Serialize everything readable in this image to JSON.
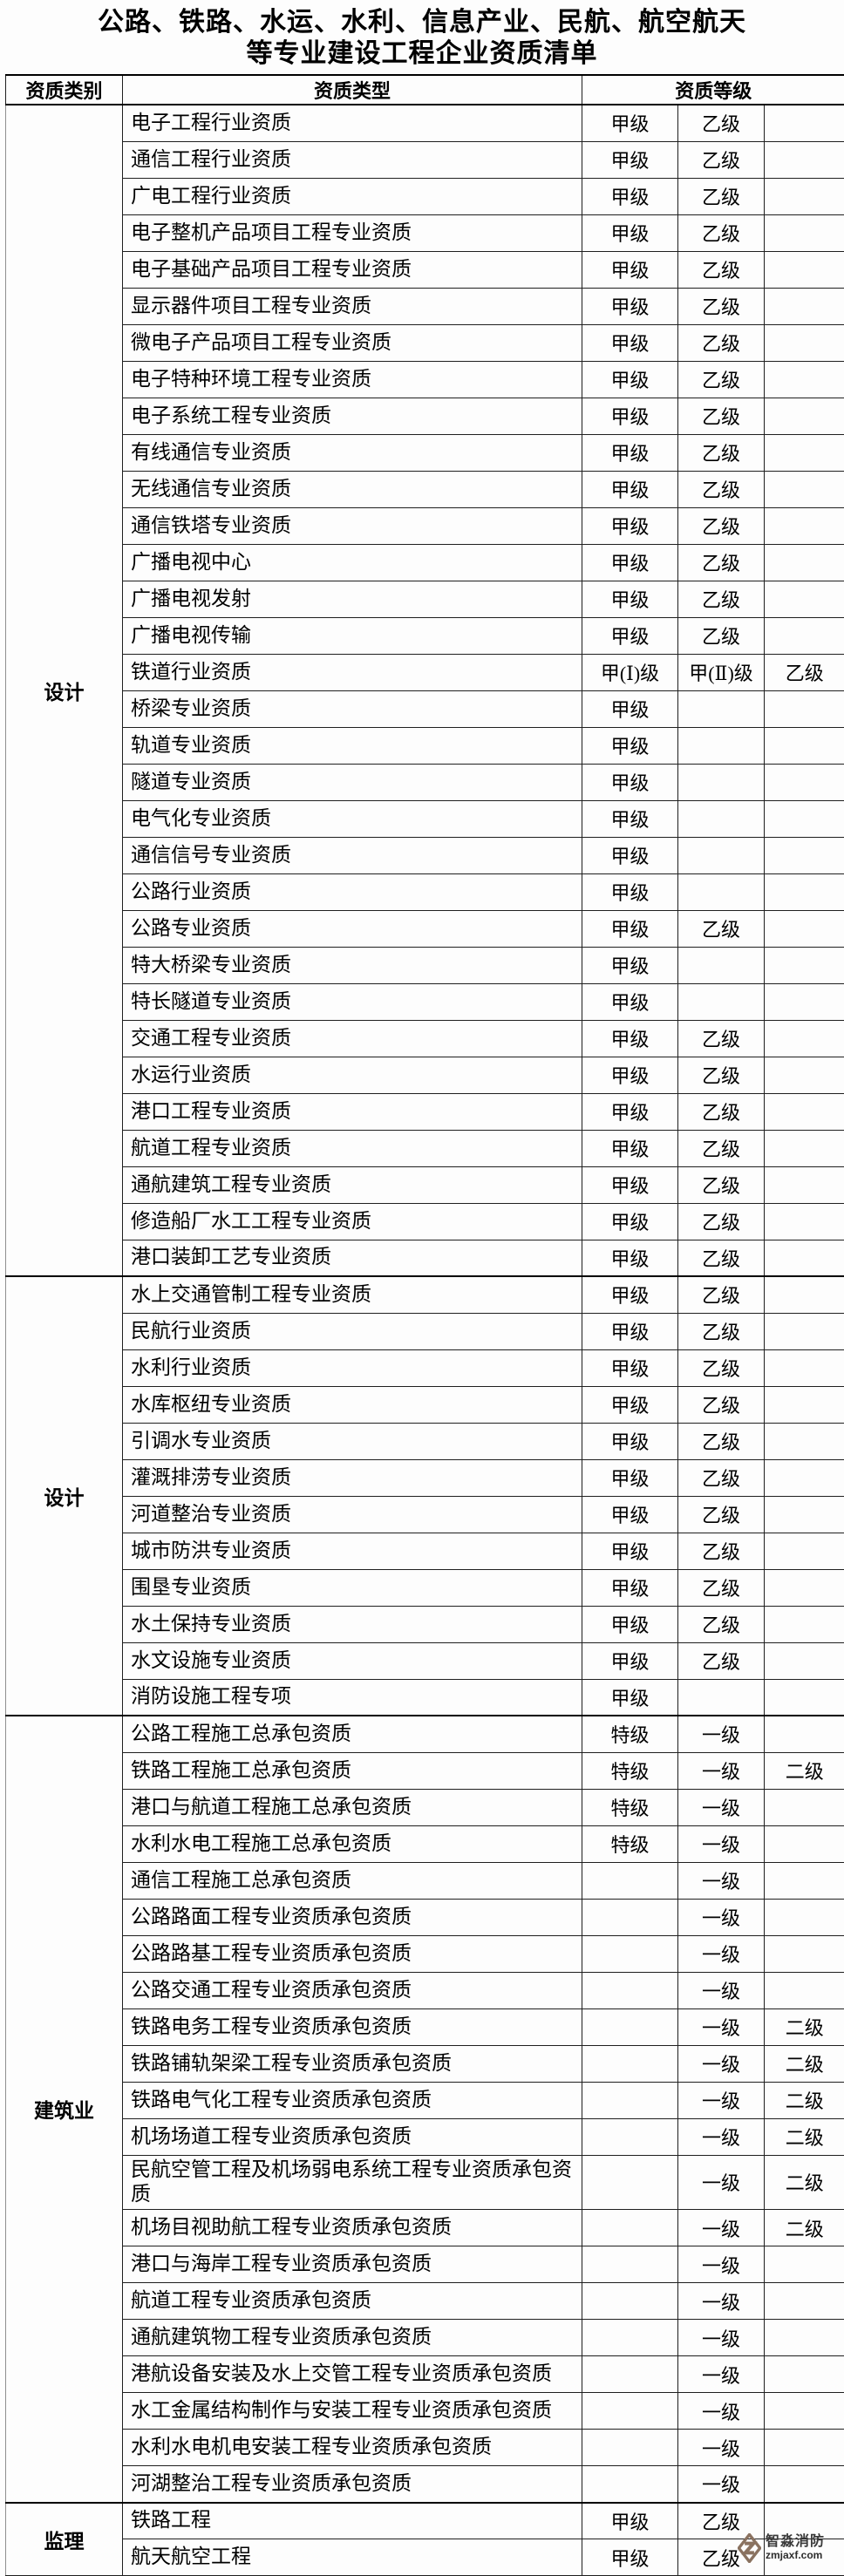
{
  "title": {
    "line1": "公路、铁路、水运、水利、信息产业、民航、航空航天",
    "line2": "等专业建设工程企业资质清单"
  },
  "table": {
    "headers": {
      "category": "资质类别",
      "type": "资质类型",
      "grade": "资质等级"
    },
    "sections": [
      {
        "category": "设计",
        "rows": [
          {
            "type": "电子工程行业资质",
            "g1": "甲级",
            "g2": "乙级",
            "g3": ""
          },
          {
            "type": "通信工程行业资质",
            "g1": "甲级",
            "g2": "乙级",
            "g3": ""
          },
          {
            "type": "广电工程行业资质",
            "g1": "甲级",
            "g2": "乙级",
            "g3": ""
          },
          {
            "type": "电子整机产品项目工程专业资质",
            "g1": "甲级",
            "g2": "乙级",
            "g3": ""
          },
          {
            "type": "电子基础产品项目工程专业资质",
            "g1": "甲级",
            "g2": "乙级",
            "g3": ""
          },
          {
            "type": "显示器件项目工程专业资质",
            "g1": "甲级",
            "g2": "乙级",
            "g3": ""
          },
          {
            "type": "微电子产品项目工程专业资质",
            "g1": "甲级",
            "g2": "乙级",
            "g3": ""
          },
          {
            "type": "电子特种环境工程专业资质",
            "g1": "甲级",
            "g2": "乙级",
            "g3": ""
          },
          {
            "type": "电子系统工程专业资质",
            "g1": "甲级",
            "g2": "乙级",
            "g3": ""
          },
          {
            "type": "有线通信专业资质",
            "g1": "甲级",
            "g2": "乙级",
            "g3": ""
          },
          {
            "type": "无线通信专业资质",
            "g1": "甲级",
            "g2": "乙级",
            "g3": ""
          },
          {
            "type": "通信铁塔专业资质",
            "g1": "甲级",
            "g2": "乙级",
            "g3": ""
          },
          {
            "type": "广播电视中心",
            "g1": "甲级",
            "g2": "乙级",
            "g3": ""
          },
          {
            "type": "广播电视发射",
            "g1": "甲级",
            "g2": "乙级",
            "g3": ""
          },
          {
            "type": "广播电视传输",
            "g1": "甲级",
            "g2": "乙级",
            "g3": ""
          },
          {
            "type": "铁道行业资质",
            "g1": "甲(Ⅰ)级",
            "g2": "甲(Ⅱ)级",
            "g3": "乙级"
          },
          {
            "type": "桥梁专业资质",
            "g1": "甲级",
            "g2": "",
            "g3": ""
          },
          {
            "type": "轨道专业资质",
            "g1": "甲级",
            "g2": "",
            "g3": ""
          },
          {
            "type": "隧道专业资质",
            "g1": "甲级",
            "g2": "",
            "g3": ""
          },
          {
            "type": "电气化专业资质",
            "g1": "甲级",
            "g2": "",
            "g3": ""
          },
          {
            "type": "通信信号专业资质",
            "g1": "甲级",
            "g2": "",
            "g3": ""
          },
          {
            "type": "公路行业资质",
            "g1": "甲级",
            "g2": "",
            "g3": ""
          },
          {
            "type": "公路专业资质",
            "g1": "甲级",
            "g2": "乙级",
            "g3": ""
          },
          {
            "type": "特大桥梁专业资质",
            "g1": "甲级",
            "g2": "",
            "g3": ""
          },
          {
            "type": "特长隧道专业资质",
            "g1": "甲级",
            "g2": "",
            "g3": ""
          },
          {
            "type": "交通工程专业资质",
            "g1": "甲级",
            "g2": "乙级",
            "g3": ""
          },
          {
            "type": "水运行业资质",
            "g1": "甲级",
            "g2": "乙级",
            "g3": ""
          },
          {
            "type": "港口工程专业资质",
            "g1": "甲级",
            "g2": "乙级",
            "g3": ""
          },
          {
            "type": "航道工程专业资质",
            "g1": "甲级",
            "g2": "乙级",
            "g3": ""
          },
          {
            "type": "通航建筑工程专业资质",
            "g1": "甲级",
            "g2": "乙级",
            "g3": ""
          },
          {
            "type": "修造船厂水工工程专业资质",
            "g1": "甲级",
            "g2": "乙级",
            "g3": ""
          },
          {
            "type": "港口装卸工艺专业资质",
            "g1": "甲级",
            "g2": "乙级",
            "g3": ""
          }
        ]
      },
      {
        "category": "设计",
        "rows": [
          {
            "type": "水上交通管制工程专业资质",
            "g1": "甲级",
            "g2": "乙级",
            "g3": ""
          },
          {
            "type": "民航行业资质",
            "g1": "甲级",
            "g2": "乙级",
            "g3": ""
          },
          {
            "type": "水利行业资质",
            "g1": "甲级",
            "g2": "乙级",
            "g3": ""
          },
          {
            "type": "水库枢纽专业资质",
            "g1": "甲级",
            "g2": "乙级",
            "g3": ""
          },
          {
            "type": "引调水专业资质",
            "g1": "甲级",
            "g2": "乙级",
            "g3": ""
          },
          {
            "type": "灌溉排涝专业资质",
            "g1": "甲级",
            "g2": "乙级",
            "g3": ""
          },
          {
            "type": "河道整治专业资质",
            "g1": "甲级",
            "g2": "乙级",
            "g3": ""
          },
          {
            "type": "城市防洪专业资质",
            "g1": "甲级",
            "g2": "乙级",
            "g3": ""
          },
          {
            "type": "围垦专业资质",
            "g1": "甲级",
            "g2": "乙级",
            "g3": ""
          },
          {
            "type": "水土保持专业资质",
            "g1": "甲级",
            "g2": "乙级",
            "g3": ""
          },
          {
            "type": "水文设施专业资质",
            "g1": "甲级",
            "g2": "乙级",
            "g3": ""
          },
          {
            "type": "消防设施工程专项",
            "g1": "甲级",
            "g2": "",
            "g3": ""
          }
        ]
      },
      {
        "category": "建筑业",
        "rows": [
          {
            "type": "公路工程施工总承包资质",
            "g1": "特级",
            "g2": "一级",
            "g3": ""
          },
          {
            "type": "铁路工程施工总承包资质",
            "g1": "特级",
            "g2": "一级",
            "g3": "二级"
          },
          {
            "type": "港口与航道工程施工总承包资质",
            "g1": "特级",
            "g2": "一级",
            "g3": ""
          },
          {
            "type": "水利水电工程施工总承包资质",
            "g1": "特级",
            "g2": "一级",
            "g3": ""
          },
          {
            "type": "通信工程施工总承包资质",
            "g1": "",
            "g2": "一级",
            "g3": ""
          },
          {
            "type": "公路路面工程专业资质承包资质",
            "g1": "",
            "g2": "一级",
            "g3": ""
          },
          {
            "type": "公路路基工程专业资质承包资质",
            "g1": "",
            "g2": "一级",
            "g3": ""
          },
          {
            "type": "公路交通工程专业资质承包资质",
            "g1": "",
            "g2": "一级",
            "g3": ""
          },
          {
            "type": "铁路电务工程专业资质承包资质",
            "g1": "",
            "g2": "一级",
            "g3": "二级"
          },
          {
            "type": "铁路铺轨架梁工程专业资质承包资质",
            "g1": "",
            "g2": "一级",
            "g3": "二级"
          },
          {
            "type": "铁路电气化工程专业资质承包资质",
            "g1": "",
            "g2": "一级",
            "g3": "二级"
          },
          {
            "type": "机场场道工程专业资质承包资质",
            "g1": "",
            "g2": "一级",
            "g3": "二级"
          },
          {
            "type": "民航空管工程及机场弱电系统工程专业资质承包资质",
            "g1": "",
            "g2": "一级",
            "g3": "二级"
          },
          {
            "type": "机场目视助航工程专业资质承包资质",
            "g1": "",
            "g2": "一级",
            "g3": "二级"
          },
          {
            "type": "港口与海岸工程专业资质承包资质",
            "g1": "",
            "g2": "一级",
            "g3": ""
          },
          {
            "type": "航道工程专业资质承包资质",
            "g1": "",
            "g2": "一级",
            "g3": ""
          },
          {
            "type": "通航建筑物工程专业资质承包资质",
            "g1": "",
            "g2": "一级",
            "g3": ""
          },
          {
            "type": "港航设备安装及水上交管工程专业资质承包资质",
            "g1": "",
            "g2": "一级",
            "g3": ""
          },
          {
            "type": "水工金属结构制作与安装工程专业资质承包资质",
            "g1": "",
            "g2": "一级",
            "g3": ""
          },
          {
            "type": "水利水电机电安装工程专业资质承包资质",
            "g1": "",
            "g2": "一级",
            "g3": ""
          },
          {
            "type": "河湖整治工程专业资质承包资质",
            "g1": "",
            "g2": "一级",
            "g3": ""
          }
        ]
      },
      {
        "category": "监理",
        "rows": [
          {
            "type": "铁路工程",
            "g1": "甲级",
            "g2": "乙级",
            "g3": ""
          },
          {
            "type": "航天航空工程",
            "g1": "甲级",
            "g2": "乙级",
            "g3": ""
          }
        ]
      }
    ]
  },
  "watermark": {
    "brand": "智淼消防",
    "site": "zmjaxf.com",
    "logo_color": "#8a7260"
  }
}
